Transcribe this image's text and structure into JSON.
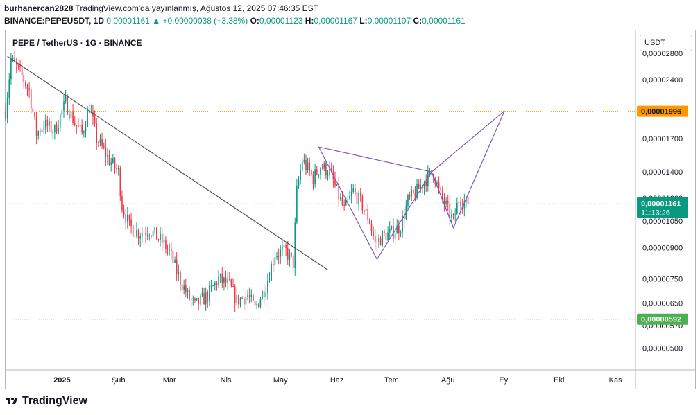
{
  "header": {
    "author": "burhanercan2828",
    "published": "TradingView.com'da yayınlanmış, Ağustos 12, 2025 07:46:35 EST",
    "symbol_line": "BINANCE:PEPEUSDT, 1D",
    "last": "0,00001161",
    "change": "▲ +0,00000038 (+3.38%)",
    "open_label": "O:",
    "open": "0,00001123",
    "high_label": "H:",
    "high": "0,00001167",
    "low_label": "L:",
    "low": "0,00001107",
    "close_label": "C:",
    "close": "0,00001161"
  },
  "legend": "PEPE / TetherUS · 1G · BINANCE",
  "unit": "USDT",
  "footer": {
    "brand": "TradingView"
  },
  "colors": {
    "up": "#089981",
    "down": "#f23645",
    "trend": "#50535e",
    "harmonic": "#7e57c2",
    "level_orange": "#ff9800",
    "level_green": "#4caf50"
  },
  "chart_data": {
    "type": "candlestick",
    "y_ticks": [
      {
        "value": 2.8e-05,
        "label": "0,00002800"
      },
      {
        "value": 2.4e-05,
        "label": "0,00002400"
      },
      {
        "value": 1.7e-05,
        "label": "0,00001700"
      },
      {
        "value": 1.4e-05,
        "label": "0,00001400"
      },
      {
        "value": 1.2e-05,
        "label": "0,00001200"
      },
      {
        "value": 1.05e-05,
        "label": "0,00001050"
      },
      {
        "value": 9e-06,
        "label": "0,00000900"
      },
      {
        "value": 7.5e-06,
        "label": "0,00000750"
      },
      {
        "value": 6.5e-06,
        "label": "0,00000650"
      },
      {
        "value": 5.7e-06,
        "label": "0,00000570"
      },
      {
        "value": 5e-06,
        "label": "0,00000500"
      }
    ],
    "x_ticks": [
      {
        "date": "2025-01-01",
        "label": "2025"
      },
      {
        "date": "2025-02-01",
        "label": "Şub"
      },
      {
        "date": "2025-03-01",
        "label": "Mar"
      },
      {
        "date": "2025-04-01",
        "label": "Nis"
      },
      {
        "date": "2025-05-01",
        "label": "May"
      },
      {
        "date": "2025-06-01",
        "label": "Haz"
      },
      {
        "date": "2025-07-01",
        "label": "Tem"
      },
      {
        "date": "2025-08-01",
        "label": "Ağu"
      },
      {
        "date": "2025-09-01",
        "label": "Eyl"
      },
      {
        "date": "2025-10-01",
        "label": "Eki"
      },
      {
        "date": "2025-11-01",
        "label": "Kas"
      }
    ],
    "x_range": [
      "2024-12-01",
      "2025-11-12"
    ],
    "y_range": [
      4.4e-06,
      3.2e-05
    ],
    "y_scale": "log",
    "price_path": [
      [
        "2024-12-01",
        2e-05
      ],
      [
        "2024-12-04",
        2.7e-05
      ],
      [
        "2024-12-09",
        2.5e-05
      ],
      [
        "2024-12-14",
        2.25e-05
      ],
      [
        "2024-12-18",
        1.75e-05
      ],
      [
        "2024-12-22",
        1.85e-05
      ],
      [
        "2024-12-28",
        1.78e-05
      ],
      [
        "2025-01-03",
        2.1e-05
      ],
      [
        "2025-01-08",
        1.86e-05
      ],
      [
        "2025-01-12",
        1.75e-05
      ],
      [
        "2025-01-16",
        2.05e-05
      ],
      [
        "2025-01-20",
        1.7e-05
      ],
      [
        "2025-01-27",
        1.5e-05
      ],
      [
        "2025-02-01",
        1.4e-05
      ],
      [
        "2025-02-03",
        1.15e-05
      ],
      [
        "2025-02-07",
        1.02e-05
      ],
      [
        "2025-02-12",
        9.8e-06
      ],
      [
        "2025-02-18",
        1e-05
      ],
      [
        "2025-02-25",
        9.3e-06
      ],
      [
        "2025-03-01",
        8.8e-06
      ],
      [
        "2025-03-05",
        7.8e-06
      ],
      [
        "2025-03-11",
        6.8e-06
      ],
      [
        "2025-03-15",
        6.4e-06
      ],
      [
        "2025-03-22",
        6.8e-06
      ],
      [
        "2025-03-28",
        7.5e-06
      ],
      [
        "2025-04-03",
        7.2e-06
      ],
      [
        "2025-04-07",
        6.6e-06
      ],
      [
        "2025-04-13",
        6.8e-06
      ],
      [
        "2025-04-17",
        6.3e-06
      ],
      [
        "2025-04-23",
        7.2e-06
      ],
      [
        "2025-04-28",
        8.7e-06
      ],
      [
        "2025-05-04",
        8.8e-06
      ],
      [
        "2025-05-08",
        8.2e-06
      ],
      [
        "2025-05-10",
        1.25e-05
      ],
      [
        "2025-05-13",
        1.5e-05
      ],
      [
        "2025-05-19",
        1.35e-05
      ],
      [
        "2025-05-23",
        1.45e-05
      ],
      [
        "2025-05-28",
        1.4e-05
      ],
      [
        "2025-06-01",
        1.25e-05
      ],
      [
        "2025-06-05",
        1.12e-05
      ],
      [
        "2025-06-10",
        1.25e-05
      ],
      [
        "2025-06-15",
        1.15e-05
      ],
      [
        "2025-06-19",
        1.05e-05
      ],
      [
        "2025-06-22",
        9.2e-06
      ],
      [
        "2025-06-26",
        9.6e-06
      ],
      [
        "2025-07-01",
        9.8e-06
      ],
      [
        "2025-07-06",
        1.02e-05
      ],
      [
        "2025-07-10",
        1.18e-05
      ],
      [
        "2025-07-15",
        1.25e-05
      ],
      [
        "2025-07-20",
        1.35e-05
      ],
      [
        "2025-07-24",
        1.4e-05
      ],
      [
        "2025-07-27",
        1.25e-05
      ],
      [
        "2025-08-01",
        1.12e-05
      ],
      [
        "2025-08-04",
        1.05e-05
      ],
      [
        "2025-08-07",
        1.2e-05
      ],
      [
        "2025-08-12",
        1.16e-05
      ]
    ],
    "lines": [
      {
        "name": "trendline",
        "points": [
          [
            "2024-12-02",
            2.75e-05
          ],
          [
            "2025-05-27",
            7.9e-06
          ]
        ]
      },
      {
        "name": "harmonic-xabcd",
        "points": [
          [
            "2025-05-22",
            1.62e-05
          ],
          [
            "2025-06-23",
            8.4e-06
          ],
          [
            "2025-07-23",
            1.4e-05
          ],
          [
            "2025-08-04",
            1.01e-05
          ],
          [
            "2025-09-01",
            2e-05
          ],
          [
            "2025-07-23",
            1.4e-05
          ]
        ]
      },
      {
        "name": "harmonic-xb",
        "points": [
          [
            "2025-05-22",
            1.62e-05
          ],
          [
            "2025-07-23",
            1.4e-05
          ]
        ]
      },
      {
        "name": "harmonic-bd",
        "points": [
          [
            "2025-07-23",
            1.4e-05
          ],
          [
            "2025-08-04",
            1.01e-05
          ]
        ]
      }
    ],
    "levels": [
      {
        "name": "orange-level",
        "value": 1.996e-05,
        "label": "0,00001996",
        "style": "dotted"
      },
      {
        "name": "green-level",
        "value": 5.92e-06,
        "label": "0,00000592",
        "style": "dotted"
      }
    ],
    "current_price": {
      "value": 1.161e-05,
      "label": "0,00001161",
      "countdown": "11:13:26"
    }
  }
}
